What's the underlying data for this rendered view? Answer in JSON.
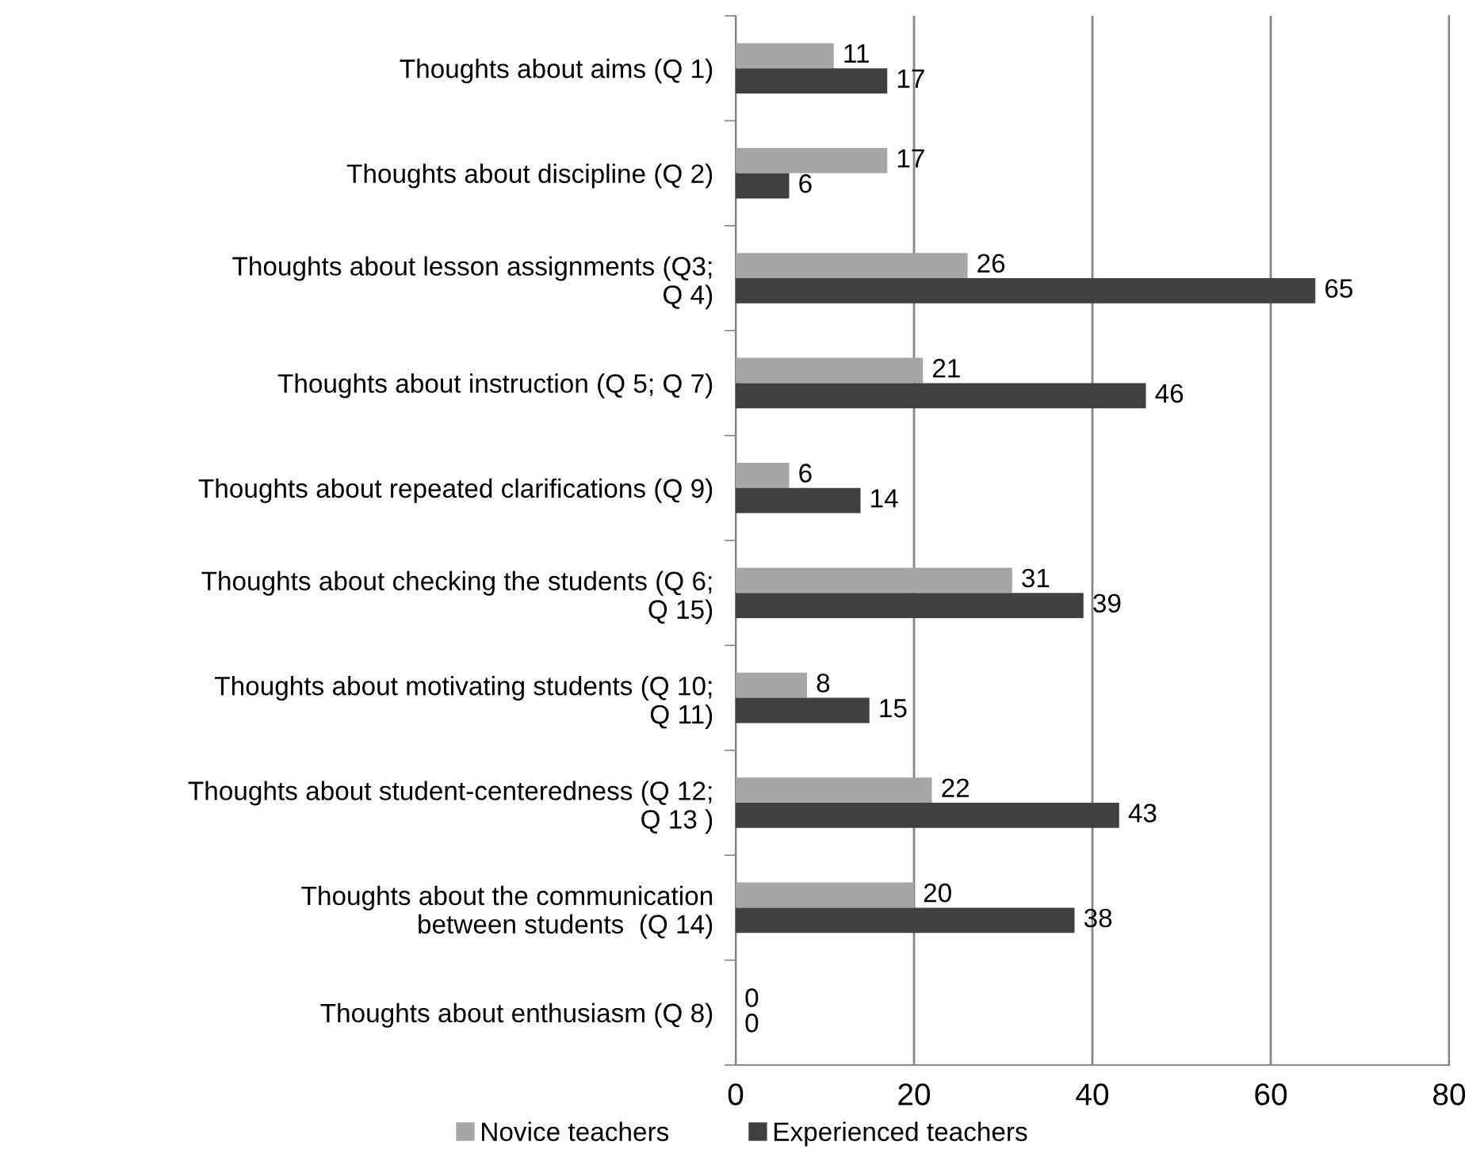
{
  "chart_data": {
    "type": "bar",
    "orientation": "horizontal",
    "categories": [
      "Thoughts about aims (Q 1)",
      "Thoughts about discipline (Q 2)",
      "Thoughts about lesson assignments (Q3;\nQ 4)",
      "Thoughts about instruction (Q 5; Q 7)",
      "Thoughts about repeated clarifications (Q 9)",
      "Thoughts about checking the students (Q 6;\nQ 15)",
      "Thoughts about motivating students (Q 10;\nQ 11)",
      "Thoughts about student-centeredness (Q 12;\nQ 13 )",
      "Thoughts about the communication\nbetween students  (Q 14)",
      "Thoughts about enthusiasm (Q 8)"
    ],
    "series": [
      {
        "name": "Novice teachers",
        "color": "#a6a6a6",
        "values": [
          11,
          17,
          26,
          21,
          6,
          31,
          8,
          22,
          20,
          0
        ]
      },
      {
        "name": "Experienced teachers",
        "color": "#404040",
        "values": [
          17,
          6,
          65,
          46,
          14,
          39,
          15,
          43,
          38,
          0
        ]
      }
    ],
    "xlim": [
      0,
      80
    ],
    "xticks": [
      0,
      20,
      40,
      60,
      80
    ],
    "grid": "x",
    "legend": "bottom",
    "data_labels": true
  }
}
